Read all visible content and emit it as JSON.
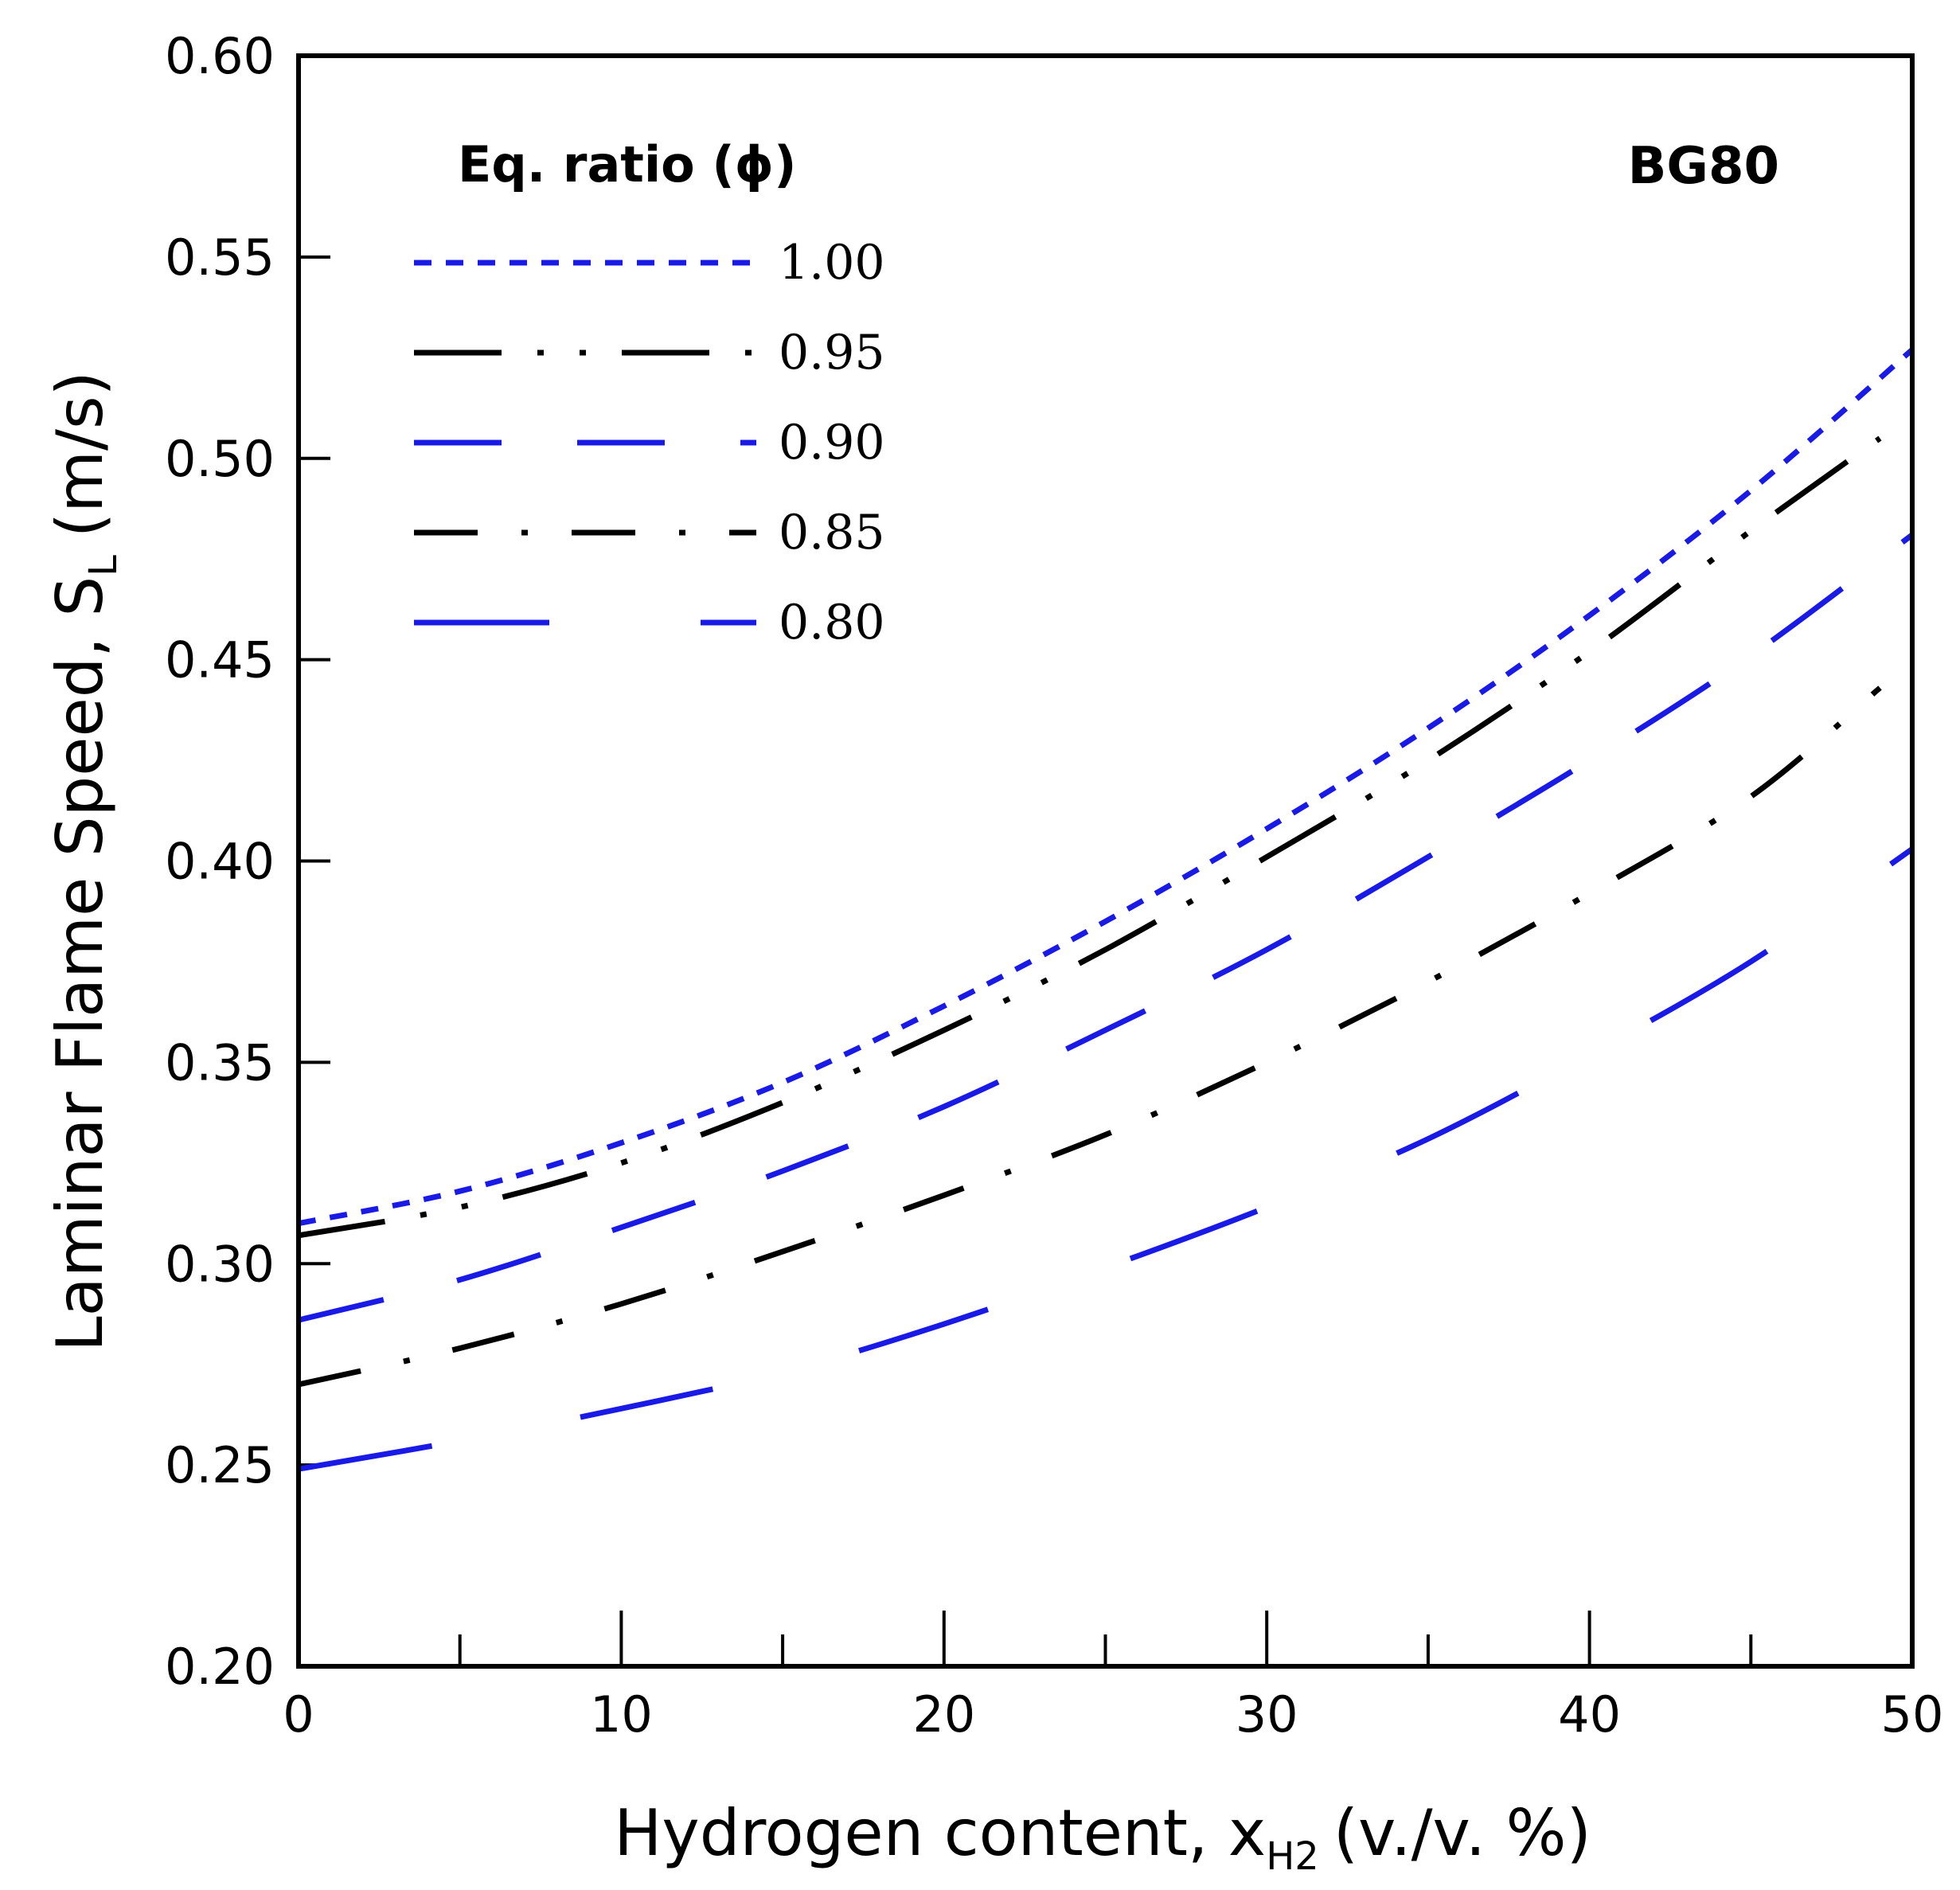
{
  "chart_data": {
    "type": "line",
    "xlabel_main": "Hydrogen content, x",
    "xlabel_sub": "H2",
    "xlabel_unit": "(v./v. %)",
    "ylabel_main": "Laminar Flame Speed, S",
    "ylabel_sub": "L",
    "ylabel_unit": "(m/s)",
    "xlim": [
      0,
      50
    ],
    "ylim": [
      0.2,
      0.6
    ],
    "xticks": [
      0,
      10,
      20,
      30,
      40,
      50
    ],
    "xtick_labels": [
      "0",
      "10",
      "20",
      "30",
      "40",
      "50"
    ],
    "xminor": [
      5,
      15,
      25,
      35,
      45
    ],
    "yticks": [
      0.2,
      0.25,
      0.3,
      0.35,
      0.4,
      0.45,
      0.5,
      0.55,
      0.6
    ],
    "ytick_labels": [
      "0.20",
      "0.25",
      "0.30",
      "0.35",
      "0.40",
      "0.45",
      "0.50",
      "0.55",
      "0.60"
    ],
    "annotation": "BG80",
    "legend": {
      "title": "Eq. ratio (ϕ)",
      "location": "upper-left"
    },
    "series": [
      {
        "name": "1.00",
        "color": "#1a1ae6",
        "style": "dotted",
        "x": [
          0,
          5,
          10,
          15,
          20,
          25,
          30,
          35,
          40,
          45,
          50
        ],
        "y": [
          0.31,
          0.318,
          0.33,
          0.345,
          0.364,
          0.385,
          0.408,
          0.433,
          0.461,
          0.492,
          0.527
        ]
      },
      {
        "name": "0.95",
        "color": "#000000",
        "style": "dashdotdot",
        "x": [
          0,
          5,
          10,
          15,
          20,
          25,
          30,
          35,
          40,
          45,
          49
        ],
        "y": [
          0.307,
          0.314,
          0.325,
          0.34,
          0.358,
          0.378,
          0.401,
          0.425,
          0.452,
          0.482,
          0.505
        ]
      },
      {
        "name": "0.90",
        "color": "#1a1ae6",
        "style": "longdash",
        "x": [
          0,
          5,
          10,
          15,
          20,
          25,
          30,
          35,
          40,
          45,
          50
        ],
        "y": [
          0.286,
          0.296,
          0.309,
          0.323,
          0.339,
          0.358,
          0.378,
          0.401,
          0.425,
          0.451,
          0.481
        ]
      },
      {
        "name": "0.85",
        "color": "#000000",
        "style": "dashdot",
        "x": [
          0,
          5,
          10,
          15,
          20,
          25,
          30,
          35,
          40,
          45,
          49
        ],
        "y": [
          0.27,
          0.279,
          0.29,
          0.303,
          0.317,
          0.332,
          0.35,
          0.37,
          0.392,
          0.416,
          0.443
        ]
      },
      {
        "name": "0.80",
        "color": "#1a1ae6",
        "style": "sparsedash",
        "x": [
          0,
          5,
          10,
          15,
          20,
          25,
          30,
          35,
          40,
          45,
          50
        ],
        "y": [
          0.249,
          0.256,
          0.264,
          0.273,
          0.285,
          0.299,
          0.314,
          0.331,
          0.352,
          0.375,
          0.403
        ]
      }
    ]
  }
}
